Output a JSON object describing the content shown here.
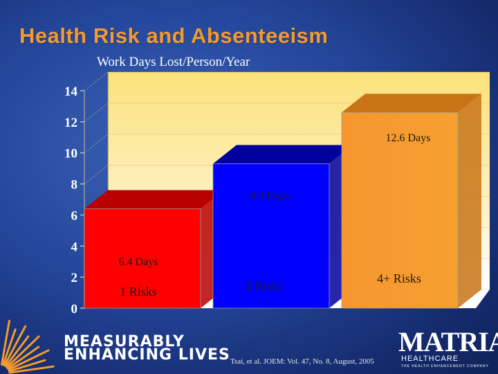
{
  "slide": {
    "title": "Health Risk and Absenteeism",
    "subtitle": "Work Days Lost/Person/Year",
    "tagline_line1": "MEASURABLY",
    "tagline_line2": "ENHANCING LIVES",
    "citation": "Tsai, et al. JOEM: Vol. 47, No. 8, August, 2005",
    "logo_name": "MATRIA",
    "logo_sub": "HEALTHCARE",
    "logo_tagline": "THE HEALTH ENHANCEMENT COMPANY"
  },
  "colors": {
    "title": "#f39a2c",
    "background": "#24469a",
    "wall": "#fbe27a",
    "bars": [
      "#ff0000",
      "#0000ff",
      "#f7962f"
    ],
    "bar_tops": [
      "#b80000",
      "#00009e",
      "#c87416"
    ]
  },
  "chart_data": {
    "type": "bar",
    "title": "Work Days Lost/Person/Year",
    "categories": [
      "1 Risks",
      "3 Risks",
      "4+ Risks"
    ],
    "values": [
      6.4,
      9.3,
      12.6
    ],
    "data_labels": [
      "6.4 Days",
      "9.3 Days",
      "12.6 Days"
    ],
    "yticks": [
      0,
      2,
      4,
      6,
      8,
      10,
      12,
      14
    ],
    "ylim": [
      0,
      14
    ],
    "xlabel": "",
    "ylabel": "",
    "grid": true
  }
}
